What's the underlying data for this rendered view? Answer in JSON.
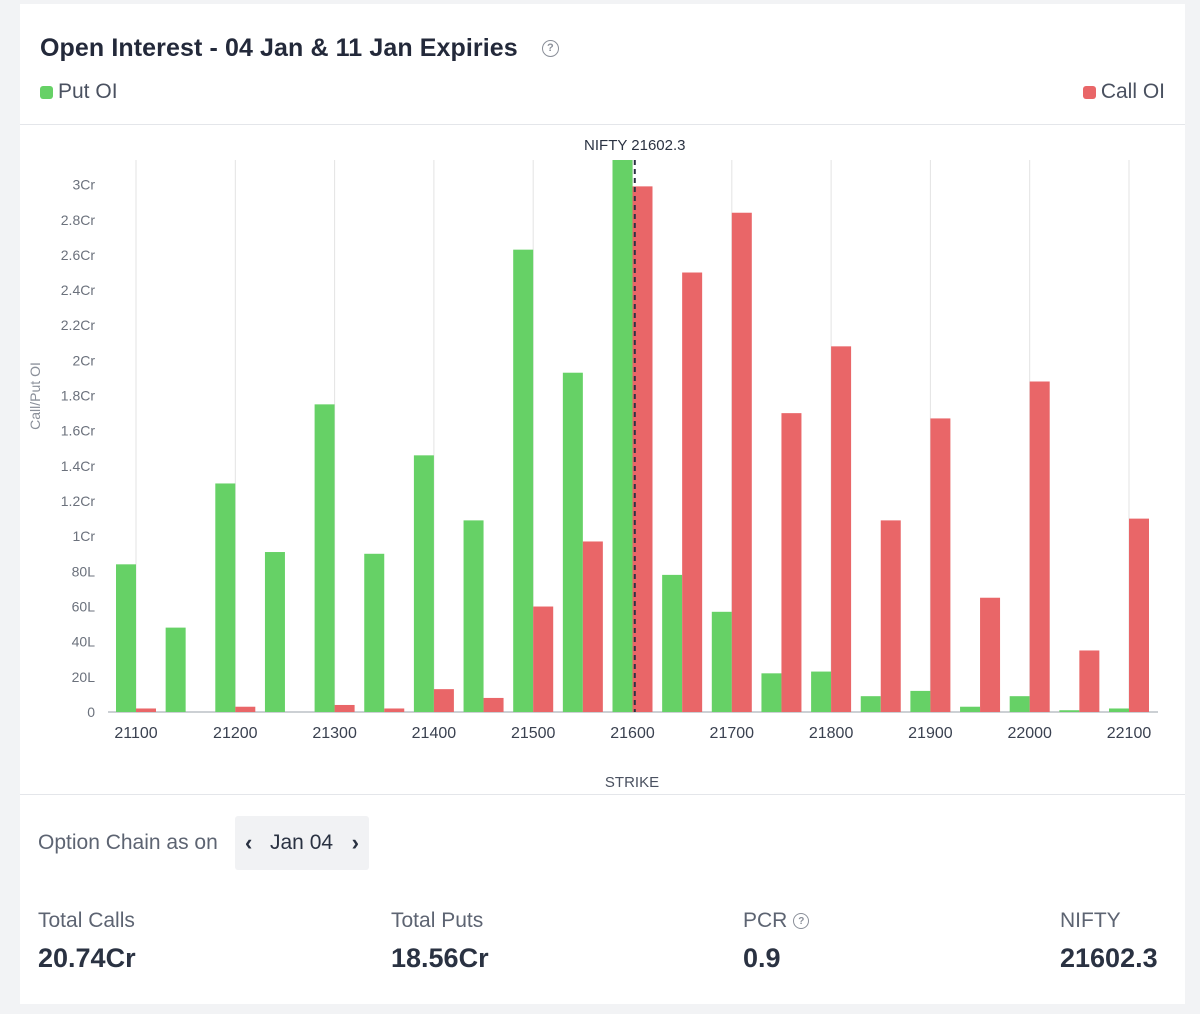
{
  "header": {
    "title": "Open Interest - 04 Jan & 11 Jan Expiries",
    "help_icon": "question-circle-icon"
  },
  "legend": {
    "put_label": "Put OI",
    "call_label": "Call OI"
  },
  "colors": {
    "put": "#66d166",
    "call": "#e96668",
    "grid": "#e3e3e3",
    "marker": "#2a3242"
  },
  "chart_data": {
    "type": "bar",
    "xlabel": "STRIKE",
    "ylabel": "Call/Put OI",
    "marker_label": "NIFTY 21602.3",
    "marker_value": 21602.3,
    "ylim": [
      0,
      3.14
    ],
    "y_unit": "Cr",
    "y_ticks": [
      {
        "value": 0,
        "label": "0"
      },
      {
        "value": 0.2,
        "label": "20L"
      },
      {
        "value": 0.4,
        "label": "40L"
      },
      {
        "value": 0.6,
        "label": "60L"
      },
      {
        "value": 0.8,
        "label": "80L"
      },
      {
        "value": 1.0,
        "label": "1Cr"
      },
      {
        "value": 1.2,
        "label": "1.2Cr"
      },
      {
        "value": 1.4,
        "label": "1.4Cr"
      },
      {
        "value": 1.6,
        "label": "1.6Cr"
      },
      {
        "value": 1.8,
        "label": "1.8Cr"
      },
      {
        "value": 2.0,
        "label": "2Cr"
      },
      {
        "value": 2.2,
        "label": "2.2Cr"
      },
      {
        "value": 2.4,
        "label": "2.4Cr"
      },
      {
        "value": 2.6,
        "label": "2.6Cr"
      },
      {
        "value": 2.8,
        "label": "2.8Cr"
      },
      {
        "value": 3.0,
        "label": "3Cr"
      }
    ],
    "x_tick_labels": [
      "21100",
      "21200",
      "21300",
      "21400",
      "21500",
      "21600",
      "21700",
      "21800",
      "21900",
      "22000",
      "22100"
    ],
    "strikes": [
      21100,
      21150,
      21200,
      21250,
      21300,
      21350,
      21400,
      21450,
      21500,
      21550,
      21600,
      21650,
      21700,
      21750,
      21800,
      21850,
      21900,
      21950,
      22000,
      22050,
      22100
    ],
    "series": [
      {
        "name": "Put OI",
        "values": [
          0.84,
          0.48,
          1.3,
          0.91,
          1.75,
          0.9,
          1.46,
          1.09,
          2.63,
          1.93,
          3.14,
          0.78,
          0.57,
          0.22,
          0.23,
          0.09,
          0.12,
          0.03,
          0.09,
          0.01,
          0.02
        ]
      },
      {
        "name": "Call OI",
        "values": [
          0.02,
          0.0,
          0.03,
          0.0,
          0.04,
          0.02,
          0.13,
          0.08,
          0.6,
          0.97,
          2.99,
          2.5,
          2.84,
          1.7,
          2.08,
          1.09,
          1.67,
          0.65,
          1.88,
          0.35,
          1.1
        ]
      }
    ]
  },
  "footer": {
    "option_chain_label": "Option Chain as on",
    "date_value": "Jan 04",
    "prev_icon": "chevron-left-icon",
    "next_icon": "chevron-right-icon"
  },
  "stats": [
    {
      "label": "Total Calls",
      "value": "20.74Cr"
    },
    {
      "label": "Total Puts",
      "value": "18.56Cr"
    },
    {
      "label": "PCR",
      "value": "0.9",
      "help": true
    },
    {
      "label": "NIFTY",
      "value": "21602.3"
    }
  ]
}
